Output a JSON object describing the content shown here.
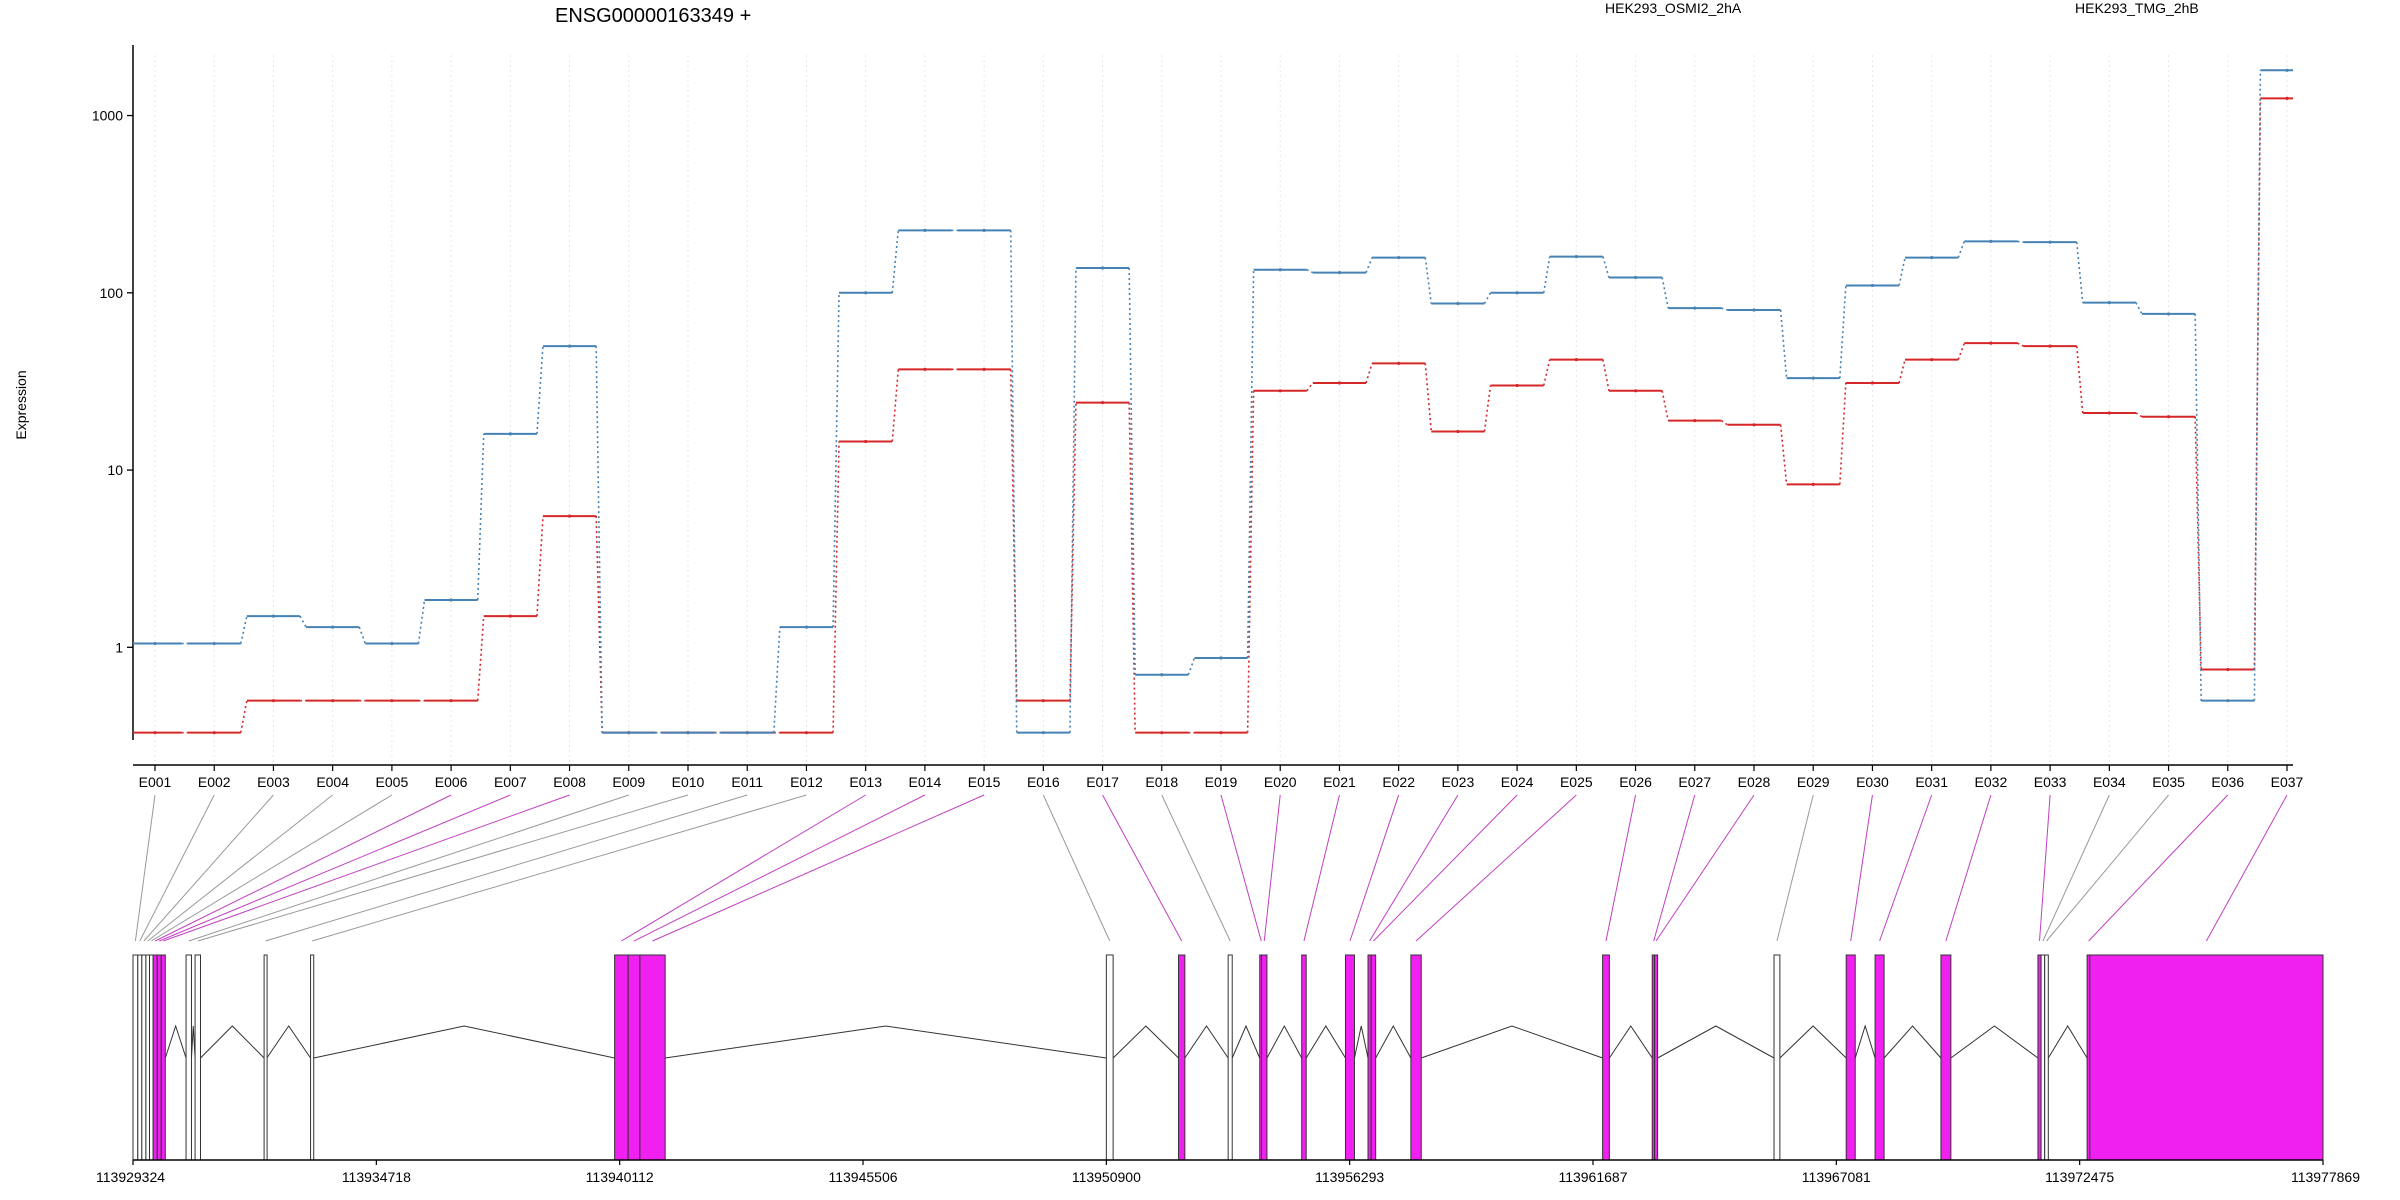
{
  "chart_data": {
    "type": "line",
    "title": "ENSG00000163349 +",
    "ylabel": "Expression",
    "yscale": "log",
    "ylim": [
      0.3,
      2500
    ],
    "yticks": [
      1,
      10,
      100,
      1000
    ],
    "ytick_labels": [
      "1",
      "10",
      "100",
      "1000"
    ],
    "grid": "vertical dotted lines at each exon",
    "legend_position": "top",
    "categories": [
      "E001",
      "E002",
      "E003",
      "E004",
      "E005",
      "E006",
      "E007",
      "E008",
      "E009",
      "E010",
      "E011",
      "E012",
      "E013",
      "E014",
      "E015",
      "E016",
      "E017",
      "E018",
      "E019",
      "E020",
      "E021",
      "E022",
      "E023",
      "E024",
      "E025",
      "E026",
      "E027",
      "E028",
      "E029",
      "E030",
      "E031",
      "E032",
      "E033",
      "E034",
      "E035",
      "E036",
      "E037"
    ],
    "series": [
      {
        "name": "HEK293_OSMI2_2hA",
        "color": "#d62728",
        "values": [
          0.33,
          0.33,
          0.5,
          0.5,
          0.5,
          0.5,
          1.5,
          5.5,
          0.33,
          0.33,
          0.33,
          0.33,
          14.5,
          37,
          37,
          0.5,
          24,
          0.33,
          0.33,
          28,
          31,
          40,
          16.5,
          30,
          42,
          28,
          19,
          18,
          8.3,
          31,
          42,
          52,
          50,
          21,
          20,
          0.75,
          1250
        ]
      },
      {
        "name": "HEK293_TMG_2hB",
        "color": "#4682b4",
        "values": [
          1.05,
          1.05,
          1.5,
          1.3,
          1.05,
          1.85,
          16,
          50,
          0.33,
          0.33,
          0.33,
          1.3,
          100,
          225,
          225,
          0.33,
          138,
          0.7,
          0.87,
          135,
          130,
          158,
          87,
          100,
          160,
          122,
          82,
          80,
          33,
          110,
          158,
          195,
          193,
          88,
          76,
          0.5,
          1800
        ]
      }
    ],
    "gene_model": {
      "strand": "+",
      "axis_ticks": [
        "113929324",
        "113934718",
        "113940112",
        "113945506",
        "113950900",
        "113956293",
        "113961687",
        "113967081",
        "113972475",
        "113977869"
      ],
      "exons": [
        {
          "id": "E001",
          "start": 113929324,
          "end": 113929430,
          "highlight": false
        },
        {
          "id": "E002",
          "start": 113929430,
          "end": 113929520,
          "highlight": false
        },
        {
          "id": "E003",
          "start": 113929520,
          "end": 113929610,
          "highlight": false
        },
        {
          "id": "E004",
          "start": 113929610,
          "end": 113929690,
          "highlight": false
        },
        {
          "id": "E005",
          "start": 113929690,
          "end": 113929770,
          "highlight": false
        },
        {
          "id": "E006",
          "start": 113929770,
          "end": 113929860,
          "highlight": true
        },
        {
          "id": "E007",
          "start": 113929860,
          "end": 113929950,
          "highlight": true
        },
        {
          "id": "E008",
          "start": 113929950,
          "end": 113930040,
          "highlight": true
        },
        {
          "id": "E009",
          "start": 113930500,
          "end": 113930620,
          "highlight": false
        },
        {
          "id": "E010",
          "start": 113930700,
          "end": 113930820,
          "highlight": false
        },
        {
          "id": "E011",
          "start": 113932230,
          "end": 113932290,
          "highlight": false
        },
        {
          "id": "E012",
          "start": 113933260,
          "end": 113933330,
          "highlight": false
        },
        {
          "id": "E013",
          "start": 113940000,
          "end": 113940300,
          "highlight": true
        },
        {
          "id": "E014",
          "start": 113940300,
          "end": 113940560,
          "highlight": true
        },
        {
          "id": "E015",
          "start": 113940560,
          "end": 113941120,
          "highlight": true
        },
        {
          "id": "E016",
          "start": 113950900,
          "end": 113951050,
          "highlight": false
        },
        {
          "id": "E017",
          "start": 113952500,
          "end": 113952640,
          "highlight": true
        },
        {
          "id": "E018",
          "start": 113953600,
          "end": 113953690,
          "highlight": false
        },
        {
          "id": "E019",
          "start": 113954300,
          "end": 113954340,
          "highlight": true
        },
        {
          "id": "E020",
          "start": 113954340,
          "end": 113954460,
          "highlight": true
        },
        {
          "id": "E021",
          "start": 113955230,
          "end": 113955330,
          "highlight": true
        },
        {
          "id": "E022",
          "start": 113956200,
          "end": 113956400,
          "highlight": true
        },
        {
          "id": "E023",
          "start": 113956700,
          "end": 113956770,
          "highlight": true
        },
        {
          "id": "E024",
          "start": 113956770,
          "end": 113956870,
          "highlight": true
        },
        {
          "id": "E025",
          "start": 113957650,
          "end": 113957880,
          "highlight": true
        },
        {
          "id": "E026",
          "start": 113961900,
          "end": 113962050,
          "highlight": true
        },
        {
          "id": "E027",
          "start": 113963000,
          "end": 113963050,
          "highlight": true
        },
        {
          "id": "E028",
          "start": 113963050,
          "end": 113963120,
          "highlight": true
        },
        {
          "id": "E029",
          "start": 113965700,
          "end": 113965830,
          "highlight": false
        },
        {
          "id": "E030",
          "start": 113967300,
          "end": 113967500,
          "highlight": true
        },
        {
          "id": "E031",
          "start": 113967940,
          "end": 113968140,
          "highlight": true
        },
        {
          "id": "E032",
          "start": 113969400,
          "end": 113969620,
          "highlight": true
        },
        {
          "id": "E033",
          "start": 113971550,
          "end": 113971620,
          "highlight": true
        },
        {
          "id": "E034",
          "start": 113971620,
          "end": 113971700,
          "highlight": false
        },
        {
          "id": "E035",
          "start": 113971700,
          "end": 113971780,
          "highlight": false
        },
        {
          "id": "E036",
          "start": 113972640,
          "end": 113972700,
          "highlight": true
        },
        {
          "id": "E037",
          "start": 113972700,
          "end": 113977869,
          "highlight": true
        }
      ]
    }
  },
  "colors": {
    "highlight_exon": "#f020f0",
    "plain_exon": "#ffffff",
    "grid": "#e6e6f0",
    "connector_highlight": "#c040c0",
    "connector_plain": "#999999"
  }
}
